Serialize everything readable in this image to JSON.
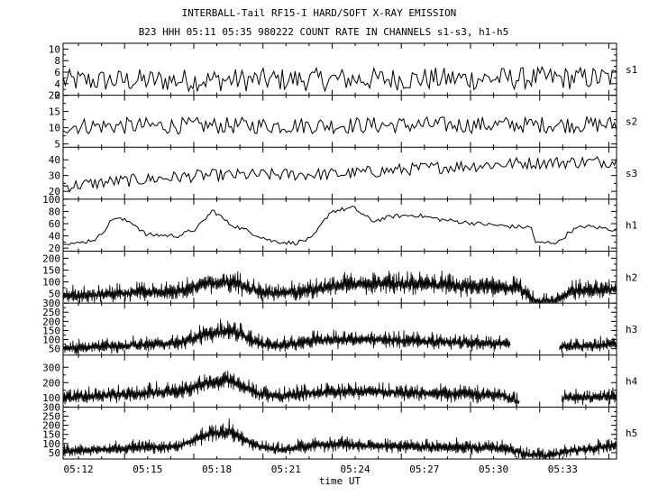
{
  "title": "INTERBALL-Tail RF15-I HARD/SOFT X-RAY EMISSION",
  "subtitle": "B23 HHH 05:11 05:35 980222  COUNT RATE IN CHANNELS s1-s3, h1-h5",
  "chart_data": {
    "type": "line",
    "title": "INTERBALL-Tail RF15-I HARD/SOFT X-RAY EMISSION",
    "subtitle": "B23 HHH 05:11 05:35 980222  COUNT RATE IN CHANNELS s1-s3, h1-h5",
    "xlabel": "time UT",
    "x_ticks": [
      "05:12",
      "05:15",
      "05:18",
      "05:21",
      "05:24",
      "05:27",
      "05:30",
      "05:33"
    ],
    "x_range": [
      "05:11:20",
      "05:35:20"
    ],
    "grid": false,
    "panels": [
      {
        "name": "s1",
        "ylim": [
          2,
          11
        ],
        "y_ticks": [
          {
            "v": 2,
            "label": "2"
          },
          {
            "v": 4,
            "label": "4"
          },
          {
            "v": 6,
            "label": "6"
          },
          {
            "v": 8,
            "label": "8"
          },
          {
            "v": 10,
            "label": "10"
          }
        ],
        "shape": [
          [
            0,
            4.5
          ],
          [
            24,
            5.0
          ]
        ],
        "noise": 2.0,
        "style": "line",
        "gaps": []
      },
      {
        "name": "s2",
        "ylim": [
          4,
          20
        ],
        "y_ticks": [
          {
            "v": 5,
            "label": "5"
          },
          {
            "v": 10,
            "label": "10"
          },
          {
            "v": 15,
            "label": "15"
          },
          {
            "v": 20,
            "label": "20"
          }
        ],
        "shape": [
          [
            0,
            10.5
          ],
          [
            24,
            11.0
          ]
        ],
        "noise": 2.6,
        "style": "line",
        "gaps": []
      },
      {
        "name": "s3",
        "ylim": [
          15,
          48
        ],
        "y_ticks": [
          {
            "v": 20,
            "label": "20"
          },
          {
            "v": 30,
            "label": "30"
          },
          {
            "v": 40,
            "label": "40"
          }
        ],
        "shape": [
          [
            0,
            23
          ],
          [
            2,
            26
          ],
          [
            6,
            30
          ],
          [
            12,
            31
          ],
          [
            16,
            35
          ],
          [
            20,
            38
          ],
          [
            24,
            39
          ]
        ],
        "noise": 4.0,
        "style": "line",
        "gaps": []
      },
      {
        "name": "h1",
        "ylim": [
          15,
          100
        ],
        "y_ticks": [
          {
            "v": 20,
            "label": "20"
          },
          {
            "v": 40,
            "label": "40"
          },
          {
            "v": 60,
            "label": "60"
          },
          {
            "v": 80,
            "label": "80"
          },
          {
            "v": 100,
            "label": "100"
          }
        ],
        "shape": [
          [
            0,
            30
          ],
          [
            0.6,
            27
          ],
          [
            1.5,
            36
          ],
          [
            2.2,
            70
          ],
          [
            3.0,
            62
          ],
          [
            3.6,
            42
          ],
          [
            5.0,
            40
          ],
          [
            5.8,
            52
          ],
          [
            6.5,
            82
          ],
          [
            7.2,
            60
          ],
          [
            8.0,
            48
          ],
          [
            9.0,
            32
          ],
          [
            10.0,
            28
          ],
          [
            10.8,
            36
          ],
          [
            11.6,
            80
          ],
          [
            12.6,
            86
          ],
          [
            13.4,
            64
          ],
          [
            14.3,
            72
          ],
          [
            15.3,
            74
          ],
          [
            16.5,
            66
          ],
          [
            18.0,
            60
          ],
          [
            19.5,
            55
          ],
          [
            20.3,
            54
          ],
          [
            20.5,
            28
          ],
          [
            21.5,
            30
          ],
          [
            22.0,
            48
          ],
          [
            22.6,
            56
          ],
          [
            24,
            50
          ]
        ],
        "noise": 3.5,
        "style": "line",
        "gaps": []
      },
      {
        "name": "h2",
        "ylim": [
          10,
          230
        ],
        "y_ticks": [
          {
            "v": 50,
            "label": "50"
          },
          {
            "v": 100,
            "label": "100"
          },
          {
            "v": 150,
            "label": "150"
          },
          {
            "v": 200,
            "label": "200"
          }
        ],
        "shape": [
          [
            0,
            38
          ],
          [
            3,
            52
          ],
          [
            5,
            58
          ],
          [
            6.2,
            92
          ],
          [
            7.3,
            98
          ],
          [
            8.5,
            58
          ],
          [
            9.3,
            48
          ],
          [
            10.5,
            62
          ],
          [
            12.2,
            85
          ],
          [
            14,
            92
          ],
          [
            16,
            88
          ],
          [
            18,
            80
          ],
          [
            19.8,
            72
          ],
          [
            20.5,
            14
          ],
          [
            21.3,
            14
          ],
          [
            22.0,
            58
          ],
          [
            24,
            70
          ]
        ],
        "noise": 38,
        "style": "band",
        "gaps": []
      },
      {
        "name": "h3",
        "ylim": [
          15,
          300
        ],
        "y_ticks": [
          {
            "v": 50,
            "label": "50"
          },
          {
            "v": 100,
            "label": "100"
          },
          {
            "v": 150,
            "label": "150"
          },
          {
            "v": 200,
            "label": "200"
          },
          {
            "v": 250,
            "label": "250"
          },
          {
            "v": 300,
            "label": "300"
          }
        ],
        "shape": [
          [
            0,
            52
          ],
          [
            3,
            68
          ],
          [
            5,
            80
          ],
          [
            6.3,
            130
          ],
          [
            7.3,
            150
          ],
          [
            8.5,
            78
          ],
          [
            9.4,
            62
          ],
          [
            11,
            95
          ],
          [
            13,
            100
          ],
          [
            16,
            88
          ],
          [
            19.4,
            78
          ],
          [
            19.5,
            null
          ],
          [
            21.4,
            null
          ],
          [
            21.5,
            60
          ],
          [
            24,
            70
          ]
        ],
        "noise": 42,
        "style": "band",
        "gaps": [
          [
            19.5,
            21.4
          ]
        ]
      },
      {
        "name": "h4",
        "ylim": [
          40,
          380
        ],
        "y_ticks": [
          {
            "v": 100,
            "label": "100"
          },
          {
            "v": 200,
            "label": "200"
          },
          {
            "v": 300,
            "label": "300"
          }
        ],
        "shape": [
          [
            0,
            98
          ],
          [
            3,
            125
          ],
          [
            5,
            140
          ],
          [
            6.3,
            200
          ],
          [
            7.3,
            215
          ],
          [
            8.5,
            122
          ],
          [
            9.4,
            110
          ],
          [
            11,
            135
          ],
          [
            13,
            140
          ],
          [
            16,
            128
          ],
          [
            19.0,
            118
          ],
          [
            19.8,
            70
          ],
          [
            20.5,
            null
          ],
          [
            21.4,
            null
          ],
          [
            21.6,
            98
          ],
          [
            24,
            112
          ]
        ],
        "noise": 48,
        "style": "band",
        "gaps": [
          [
            20.5,
            21.4
          ]
        ]
      },
      {
        "name": "h5",
        "ylim": [
          15,
          300
        ],
        "y_ticks": [
          {
            "v": 50,
            "label": "50"
          },
          {
            "v": 100,
            "label": "100"
          },
          {
            "v": 150,
            "label": "150"
          },
          {
            "v": 200,
            "label": "200"
          },
          {
            "v": 250,
            "label": "250"
          },
          {
            "v": 300,
            "label": "300"
          }
        ],
        "shape": [
          [
            0,
            58
          ],
          [
            3,
            72
          ],
          [
            5,
            85
          ],
          [
            6.3,
            150
          ],
          [
            7.2,
            165
          ],
          [
            8.4,
            88
          ],
          [
            9.5,
            62
          ],
          [
            11,
            95
          ],
          [
            13,
            88
          ],
          [
            16,
            80
          ],
          [
            19.2,
            72
          ],
          [
            20.1,
            40
          ],
          [
            21.0,
            32
          ],
          [
            22,
            62
          ],
          [
            24,
            88
          ]
        ],
        "noise": 38,
        "style": "band",
        "gaps": []
      }
    ]
  }
}
